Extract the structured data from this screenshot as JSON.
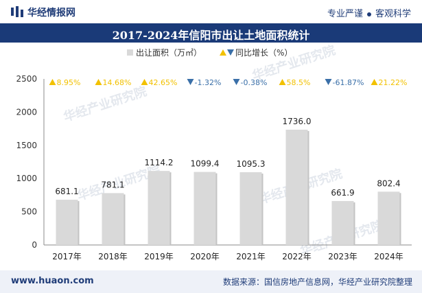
{
  "header": {
    "site_name": "华经情报网",
    "tagline_a": "专业严谨",
    "tagline_b": "客观科学"
  },
  "footer": {
    "website": "www.huaon.com",
    "source": "数据来源：国信房地产信息网，华经产业研究院整理"
  },
  "watermark": "华经产业研究院",
  "colors": {
    "bar": "#d9d9d9",
    "up": "#f2c100",
    "down": "#3a6fa8",
    "title_bg": "#1a3a78"
  },
  "chart_data": {
    "type": "bar",
    "title": "2017-2024年信阳市出让土地面积统计",
    "categories": [
      "2017年",
      "2018年",
      "2019年",
      "2020年",
      "2021年",
      "2022年",
      "2023年",
      "2024年"
    ],
    "series": [
      {
        "name": "出让面积（万㎡）",
        "values": [
          681.1,
          781.1,
          1114.2,
          1099.4,
          1095.3,
          1736.0,
          661.9,
          802.4
        ],
        "labels": [
          "681.1",
          "781.1",
          "1114.2",
          "1099.4",
          "1095.3",
          "1736.0",
          "661.9",
          "802.4"
        ]
      },
      {
        "name": "同比增长（%）",
        "values": [
          8.95,
          14.68,
          42.65,
          -1.32,
          -0.38,
          58.5,
          -61.87,
          21.22
        ],
        "labels": [
          "8.95%",
          "14.68%",
          "42.65%",
          "-1.32%",
          "-0.38%",
          "58.5%",
          "-61.87%",
          "21.22%"
        ]
      }
    ],
    "ylim": [
      0,
      2500
    ],
    "yticks": [
      0,
      500,
      1000,
      1500,
      2000,
      2500
    ],
    "grid": false,
    "legend": "top-right"
  }
}
